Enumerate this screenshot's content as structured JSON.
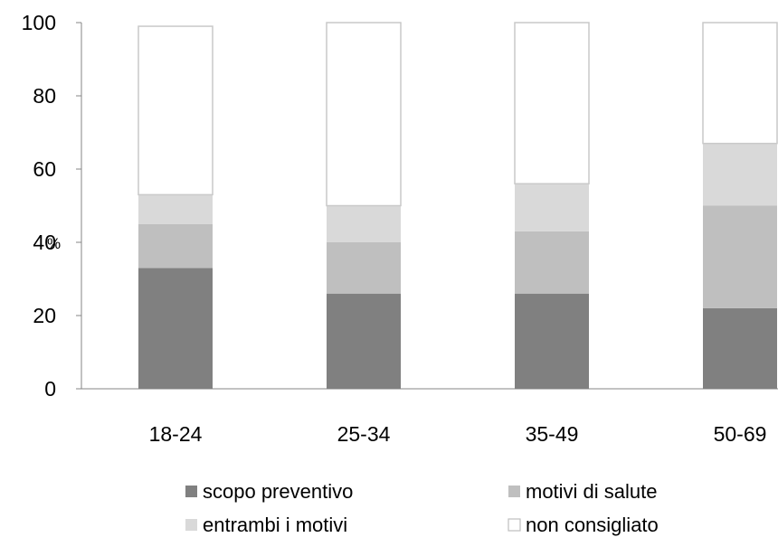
{
  "chart_data": {
    "type": "bar",
    "stacked": true,
    "title": "",
    "xlabel": "",
    "ylabel": "%",
    "ylim": [
      0,
      100
    ],
    "yticks": [
      0,
      20,
      40,
      60,
      80,
      100
    ],
    "categories": [
      "18-24",
      "25-34",
      "35-49",
      "50-69"
    ],
    "series": [
      {
        "name": "scopo preventivo",
        "values": [
          33,
          26,
          26,
          22
        ],
        "color": "#808080"
      },
      {
        "name": "motivi di salute",
        "values": [
          12,
          14,
          17,
          28
        ],
        "color": "#bfbfbf"
      },
      {
        "name": "entrambi i motivi",
        "values": [
          8,
          10,
          13,
          17
        ],
        "color": "#d9d9d9"
      },
      {
        "name": "non consigliato",
        "values": [
          46,
          50,
          44,
          33
        ],
        "color": "#ffffff"
      }
    ],
    "grid": false,
    "legend": "bottom"
  }
}
